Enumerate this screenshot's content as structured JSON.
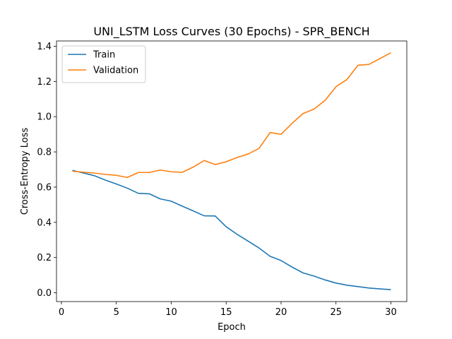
{
  "chart_data": {
    "type": "line",
    "title": "UNI_LSTM Loss Curves (30 Epochs) - SPR_BENCH",
    "xlabel": "Epoch",
    "ylabel": "Cross-Entropy Loss",
    "xlim": [
      -0.45,
      31.45
    ],
    "ylim": [
      -0.05,
      1.43
    ],
    "xticks": [
      0,
      5,
      10,
      15,
      20,
      25,
      30
    ],
    "yticks": [
      0.0,
      0.2,
      0.4,
      0.6,
      0.8,
      1.0,
      1.2,
      1.4
    ],
    "xtick_labels": [
      "0",
      "5",
      "10",
      "15",
      "20",
      "25",
      "30"
    ],
    "ytick_labels": [
      "0.0",
      "0.2",
      "0.4",
      "0.6",
      "0.8",
      "1.0",
      "1.2",
      "1.4"
    ],
    "grid": false,
    "legend_position": "upper-left",
    "x": [
      1,
      2,
      3,
      4,
      5,
      6,
      7,
      8,
      9,
      10,
      11,
      12,
      13,
      14,
      15,
      16,
      17,
      18,
      19,
      20,
      21,
      22,
      23,
      24,
      25,
      26,
      27,
      28,
      29,
      30
    ],
    "series": [
      {
        "name": "Train",
        "color": "#1f77b4",
        "values": [
          0.695,
          0.68,
          0.665,
          0.64,
          0.618,
          0.594,
          0.565,
          0.562,
          0.533,
          0.52,
          0.492,
          0.465,
          0.437,
          0.436,
          0.375,
          0.332,
          0.293,
          0.254,
          0.207,
          0.183,
          0.146,
          0.113,
          0.095,
          0.073,
          0.055,
          0.043,
          0.035,
          0.027,
          0.022,
          0.018
        ]
      },
      {
        "name": "Validation",
        "color": "#ff7f0e",
        "values": [
          0.69,
          0.685,
          0.68,
          0.672,
          0.667,
          0.655,
          0.683,
          0.683,
          0.697,
          0.687,
          0.684,
          0.714,
          0.751,
          0.728,
          0.744,
          0.768,
          0.788,
          0.82,
          0.91,
          0.9,
          0.962,
          1.018,
          1.043,
          1.092,
          1.17,
          1.211,
          1.292,
          1.297,
          1.33,
          1.363
        ]
      }
    ]
  }
}
